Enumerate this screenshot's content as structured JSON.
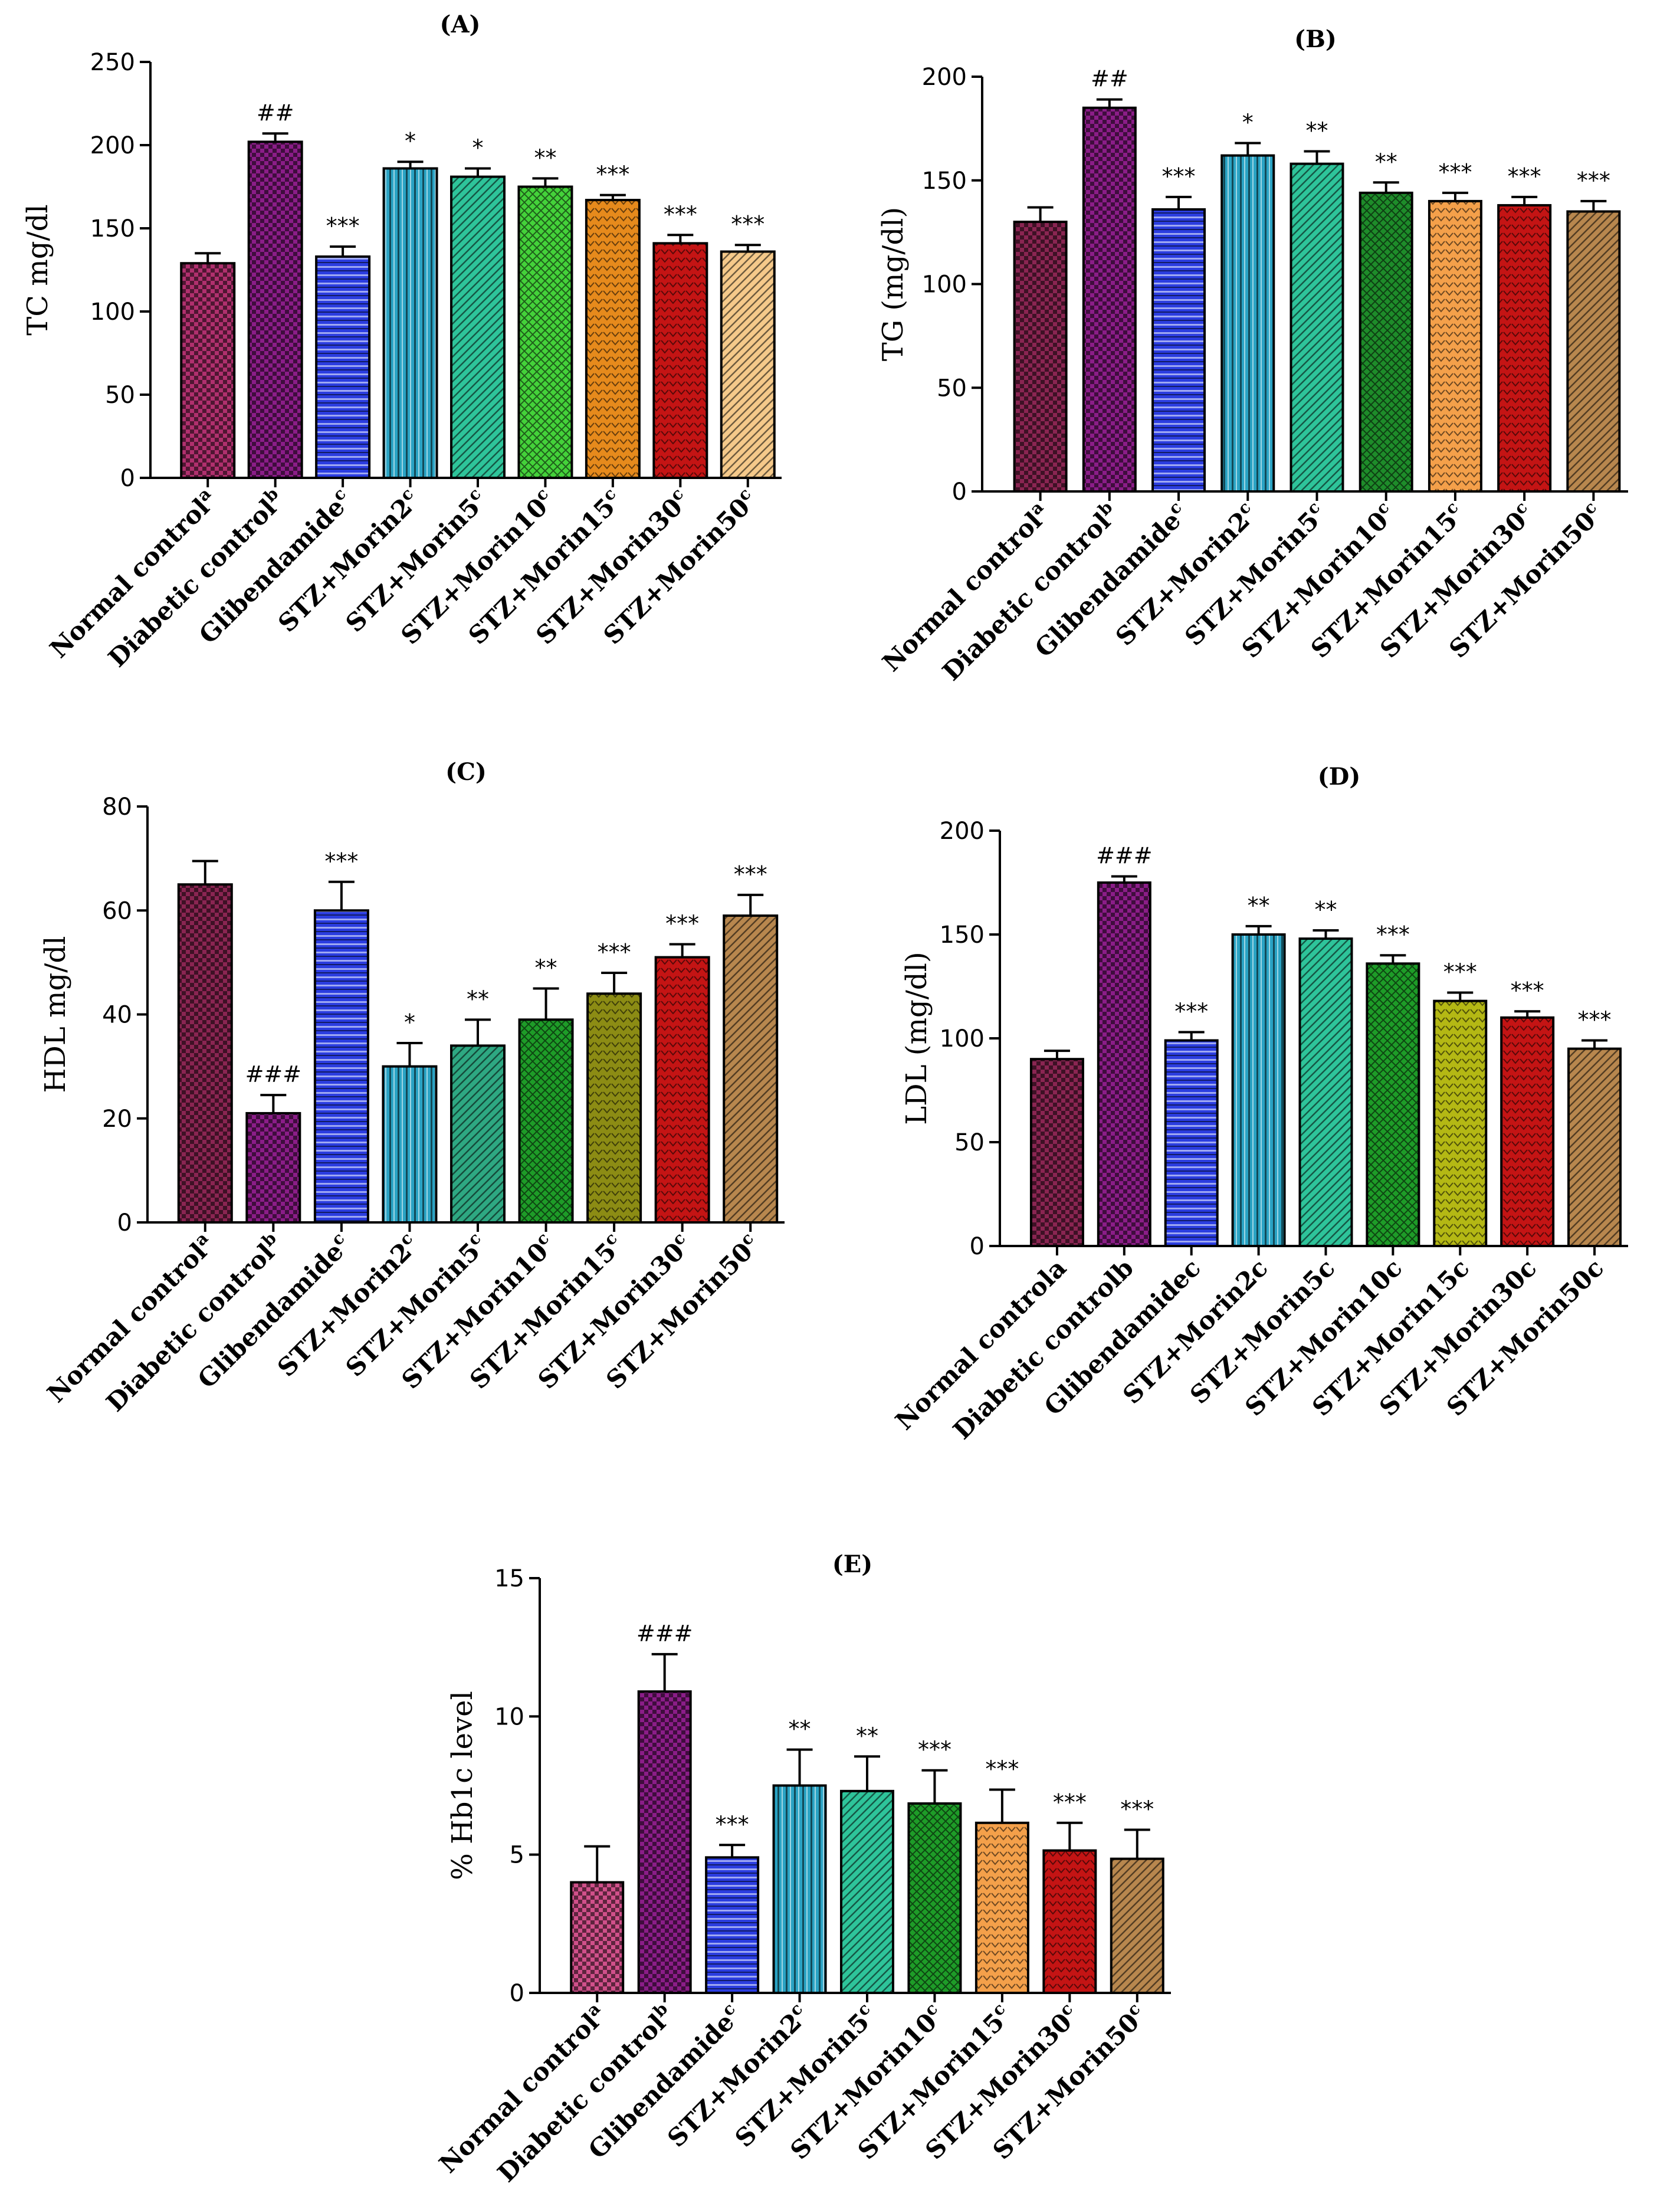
{
  "palette": {
    "Normal control": "#b0306e",
    "Diabetic control": "#8b1d88",
    "Glibendamide": "#2b3de0",
    "STZ+Morin2": "#2aa3c4",
    "STZ+Morin5": "#2ec49a",
    "STZ+Morin10": "#1e9c28",
    "STZ+Morin15": "#e68a1c",
    "STZ+Morin30": "#c41414",
    "STZ+Morin50": "#f5c98a"
  },
  "chart_data": [
    {
      "id": "A",
      "type": "bar",
      "title": "(A)",
      "ylabel": "TC mg/dl",
      "ylim": [
        0,
        250
      ],
      "yticks": [
        0,
        50,
        100,
        150,
        200,
        250
      ],
      "categories": [
        "Normal control",
        "Diabetic control",
        "Glibendamide",
        "STZ+Morin2",
        "STZ+Morin5",
        "STZ+Morin10",
        "STZ+Morin15",
        "STZ+Morin30",
        "STZ+Morin50"
      ],
      "superscripts": [
        "a",
        "b",
        "c",
        "c",
        "c",
        "c",
        "c",
        "c",
        "c"
      ],
      "colors": [
        "#b0306e",
        "#8b1d88",
        "#2b3de0",
        "#2aa3c4",
        "#2ec49a",
        "#44d23a",
        "#e68a1c",
        "#c41414",
        "#f5c98a"
      ],
      "values": [
        129,
        202,
        133,
        186,
        181,
        175,
        167,
        141,
        136
      ],
      "errors": [
        6,
        5,
        6,
        4,
        5,
        5,
        3,
        5,
        4
      ],
      "annotations": [
        "",
        "##",
        "***",
        "*",
        "*",
        "**",
        "***",
        "***",
        "***"
      ]
    },
    {
      "id": "B",
      "type": "bar",
      "title": "(B)",
      "ylabel": "TG (mg/dl)",
      "ylim": [
        0,
        200
      ],
      "yticks": [
        0,
        50,
        100,
        150,
        200
      ],
      "categories": [
        "Normal control",
        "Diabetic control",
        "Glibendamide",
        "STZ+Morin2",
        "STZ+Morin5",
        "STZ+Morin10",
        "STZ+Morin15",
        "STZ+Morin30",
        "STZ+Morin50"
      ],
      "superscripts": [
        "a",
        "b",
        "c",
        "c",
        "c",
        "c",
        "c",
        "c",
        "c"
      ],
      "colors": [
        "#8a2552",
        "#8b1d88",
        "#2b3de0",
        "#2aa3c4",
        "#2ec49a",
        "#1e8c2a",
        "#f4a04a",
        "#c41414",
        "#b8874e"
      ],
      "values": [
        130,
        185,
        136,
        162,
        158,
        144,
        140,
        138,
        135
      ],
      "errors": [
        7,
        4,
        6,
        6,
        6,
        5,
        4,
        4,
        5
      ],
      "annotations": [
        "",
        "##",
        "***",
        "*",
        "**",
        "**",
        "***",
        "***",
        "***"
      ]
    },
    {
      "id": "C",
      "type": "bar",
      "title": "(C)",
      "ylabel": "HDL mg/dl",
      "ylim": [
        0,
        80
      ],
      "yticks": [
        0,
        20,
        40,
        60,
        80
      ],
      "categories": [
        "Normal control",
        "Diabetic control",
        "Glibendamide",
        "STZ+Morin2",
        "STZ+Morin5",
        "STZ+Morin10",
        "STZ+Morin15",
        "STZ+Morin30",
        "STZ+Morin50"
      ],
      "superscripts": [
        "a",
        "b",
        "c",
        "c",
        "c",
        "c",
        "c",
        "c",
        "c"
      ],
      "colors": [
        "#8a2552",
        "#8b1d88",
        "#2b3de0",
        "#2aa3c4",
        "#2ea882",
        "#1e9c28",
        "#8c8c14",
        "#c41414",
        "#b8874e"
      ],
      "values": [
        65,
        21,
        60,
        30,
        34,
        39,
        44,
        51,
        59
      ],
      "errors": [
        4.5,
        3.5,
        5.5,
        4.5,
        5,
        6,
        4,
        2.5,
        4
      ],
      "annotations": [
        "",
        "###",
        "***",
        "*",
        "**",
        "**",
        "***",
        "***",
        "***"
      ]
    },
    {
      "id": "D",
      "type": "bar",
      "title": "(D)",
      "ylabel": "LDL (mg/dl)",
      "ylim": [
        0,
        200
      ],
      "yticks": [
        0,
        50,
        100,
        150,
        200
      ],
      "categories": [
        "Normal controla",
        "Diabetic controlb",
        "Glibendamidec",
        "STZ+Morin2c",
        "STZ+Morin5c",
        "STZ+Morin10c",
        "STZ+Morin15c",
        "STZ+Morin30c",
        "STZ+Morin50c"
      ],
      "colors": [
        "#8a2552",
        "#8b1d88",
        "#2b3de0",
        "#2aa3c4",
        "#2ec49a",
        "#1e9c28",
        "#b4b814",
        "#c41414",
        "#b8874e"
      ],
      "values": [
        90,
        175,
        99,
        150,
        148,
        136,
        118,
        110,
        95
      ],
      "errors": [
        4,
        3,
        4,
        4,
        4,
        4,
        4,
        3,
        4
      ],
      "annotations": [
        "",
        "###",
        "***",
        "**",
        "**",
        "***",
        "***",
        "***",
        "***"
      ]
    },
    {
      "id": "E",
      "type": "bar",
      "title": "(E)",
      "ylabel": "% Hb1c level",
      "ylim": [
        0,
        15
      ],
      "yticks": [
        0,
        5,
        10,
        15
      ],
      "categories": [
        "Normal control",
        "Diabetic control",
        "Glibendamide",
        "STZ+Morin2",
        "STZ+Morin5",
        "STZ+Morin10",
        "STZ+Morin15",
        "STZ+Morin30",
        "STZ+Morin50"
      ],
      "superscripts": [
        "a",
        "b",
        "c",
        "c",
        "c",
        "c",
        "c",
        "c",
        "c"
      ],
      "colors": [
        "#d0508a",
        "#8b1d88",
        "#2b3de0",
        "#2aa3c4",
        "#2ec49a",
        "#1e9c28",
        "#f4a04a",
        "#c41414",
        "#b8874e"
      ],
      "values": [
        4.0,
        10.9,
        4.9,
        7.5,
        7.3,
        6.85,
        6.15,
        5.15,
        4.85
      ],
      "errors": [
        1.3,
        1.35,
        0.45,
        1.3,
        1.25,
        1.2,
        1.2,
        1.0,
        1.05
      ],
      "annotations": [
        "",
        "###",
        "***",
        "**",
        "**",
        "***",
        "***",
        "***",
        "***"
      ]
    }
  ]
}
